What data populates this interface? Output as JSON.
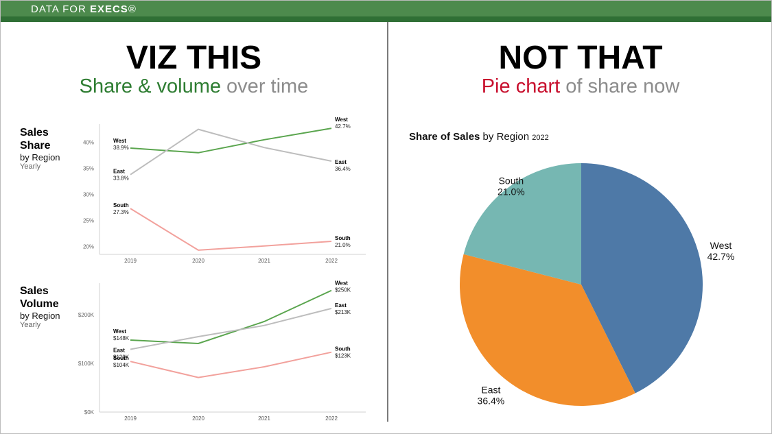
{
  "brand": {
    "prefix": "DATA FOR ",
    "name": "EXECS",
    "mark": "®"
  },
  "left_panel": {
    "headline": "VIZ THIS",
    "subhead_highlight": "Share & volume",
    "subhead_rest": " over time"
  },
  "right_panel": {
    "headline": "NOT THAT",
    "subhead_highlight": "Pie chart",
    "subhead_rest": " of share now"
  },
  "colors": {
    "bar": "#4d8a4d",
    "bar_dark": "#2f6f35",
    "west_line": "#5aa54e",
    "east_line": "#bdbdbd",
    "south_line": "#f2a19c",
    "pie_west": "#4e79a7",
    "pie_east": "#f28e2b",
    "pie_south": "#76b7b2"
  },
  "chart_data": [
    {
      "type": "line",
      "title_line1": "Sales",
      "title_line2": "Share",
      "subtitle": "by Region",
      "subtitle2": "Yearly",
      "x": [
        "2019",
        "2020",
        "2021",
        "2022"
      ],
      "ylim": [
        18.5,
        43.5
      ],
      "yticks": [
        20,
        25,
        30,
        35,
        40
      ],
      "ytick_labels": [
        "20%",
        "25%",
        "30%",
        "35%",
        "40%"
      ],
      "series": [
        {
          "name": "West",
          "color": "#5aa54e",
          "values": [
            38.9,
            38.0,
            40.5,
            42.7
          ],
          "start_label": "38.9%",
          "end_label": "42.7%"
        },
        {
          "name": "East",
          "color": "#bdbdbd",
          "values": [
            33.8,
            42.5,
            39.0,
            36.4
          ],
          "start_label": "33.8%",
          "end_label": "36.4%"
        },
        {
          "name": "South",
          "color": "#f2a19c",
          "values": [
            27.3,
            19.3,
            20.1,
            21.0
          ],
          "start_label": "27.3%",
          "end_label": "21.0%"
        }
      ]
    },
    {
      "type": "line",
      "title_line1": "Sales",
      "title_line2": "Volume",
      "subtitle": "by Region",
      "subtitle2": "Yearly",
      "x": [
        "2019",
        "2020",
        "2021",
        "2022"
      ],
      "ylim": [
        0,
        265
      ],
      "yticks": [
        0,
        100,
        200
      ],
      "ytick_labels": [
        "$0K",
        "$100K",
        "$200K"
      ],
      "series": [
        {
          "name": "West",
          "color": "#5aa54e",
          "values": [
            148,
            141,
            186,
            250
          ],
          "start_label": "$148K",
          "end_label": "$250K"
        },
        {
          "name": "East",
          "color": "#bdbdbd",
          "values": [
            129,
            155,
            178,
            213
          ],
          "start_label": "$129K",
          "end_label": "$213K"
        },
        {
          "name": "South",
          "color": "#f2a19c",
          "values": [
            104,
            71,
            93,
            123
          ],
          "start_label": "$104K",
          "end_label": "$123K"
        }
      ]
    },
    {
      "type": "pie",
      "title_bold": "Share of Sales",
      "title_rest": " by Region ",
      "title_year": "2022",
      "slices": [
        {
          "name": "West",
          "value": 42.7,
          "label": "42.7%",
          "color": "#4e79a7"
        },
        {
          "name": "East",
          "value": 36.4,
          "label": "36.4%",
          "color": "#f28e2b"
        },
        {
          "name": "South",
          "value": 21.0,
          "label": "21.0%",
          "color": "#76b7b2"
        }
      ]
    }
  ]
}
